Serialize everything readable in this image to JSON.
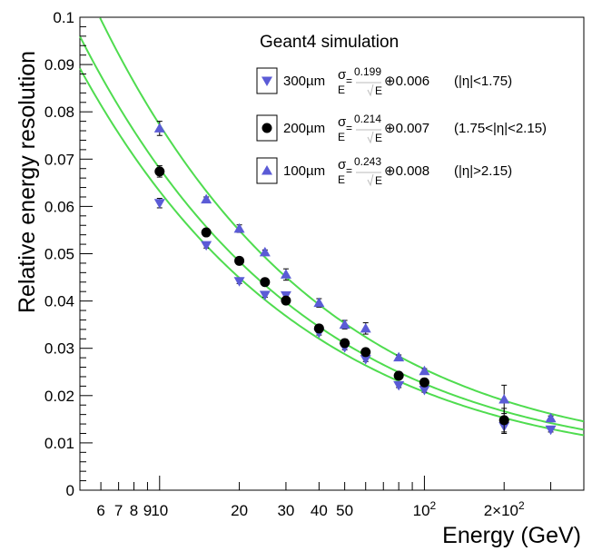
{
  "chart_data": {
    "type": "scatter",
    "title": "",
    "annotation": "Geant4 simulation",
    "xlabel": "Energy (GeV)",
    "ylabel": "Relative energy resolution",
    "xscale": "log",
    "xlim": [
      5,
      400
    ],
    "ylim": [
      0,
      0.1
    ],
    "grid": false,
    "legend_position": "top-right",
    "x_tick_labels": [
      {
        "value": 6,
        "label": "6"
      },
      {
        "value": 7,
        "label": "7"
      },
      {
        "value": 8,
        "label": "8"
      },
      {
        "value": 9,
        "label": "9"
      },
      {
        "value": 10,
        "label": "10"
      },
      {
        "value": 20,
        "label": "20"
      },
      {
        "value": 30,
        "label": "30"
      },
      {
        "value": 40,
        "label": "40"
      },
      {
        "value": 50,
        "label": "50"
      },
      {
        "value": 100,
        "label": "10",
        "exponent": "2"
      },
      {
        "value": 200,
        "label": "2×10",
        "exponent": "2"
      }
    ],
    "y_tick_labels": [
      {
        "value": 0,
        "label": "0"
      },
      {
        "value": 0.01,
        "label": "0.01"
      },
      {
        "value": 0.02,
        "label": "0.02"
      },
      {
        "value": 0.03,
        "label": "0.03"
      },
      {
        "value": 0.04,
        "label": "0.04"
      },
      {
        "value": 0.05,
        "label": "0.05"
      },
      {
        "value": 0.06,
        "label": "0.06"
      },
      {
        "value": 0.07,
        "label": "0.07"
      },
      {
        "value": 0.08,
        "label": "0.08"
      },
      {
        "value": 0.09,
        "label": "0.09"
      },
      {
        "value": 0.1,
        "label": "0.1"
      }
    ],
    "series": [
      {
        "name": "300µm",
        "marker": "triangle-down",
        "color": "#5b5bd6",
        "stochastic": 0.199,
        "constant": 0.006,
        "fit_label": {
          "sigma": "σ",
          "E": "E",
          "stochastic": "0.199",
          "sqrtE": "E",
          "plus": "⊕0.006",
          "region": "(|η|<1.75)"
        },
        "points": [
          {
            "x": 10,
            "y": 0.0607,
            "err": 0.001
          },
          {
            "x": 15,
            "y": 0.0518,
            "err": 0.0006
          },
          {
            "x": 20,
            "y": 0.0442,
            "err": 0.0005
          },
          {
            "x": 25,
            "y": 0.0413,
            "err": 0.0005
          },
          {
            "x": 30,
            "y": 0.0412,
            "err": 0.0006
          },
          {
            "x": 40,
            "y": 0.0333,
            "err": 0.0005
          },
          {
            "x": 50,
            "y": 0.0302,
            "err": 0.0005
          },
          {
            "x": 60,
            "y": 0.0277,
            "err": 0.0005
          },
          {
            "x": 80,
            "y": 0.0222,
            "err": 0.0005
          },
          {
            "x": 100,
            "y": 0.0212,
            "err": 0.0005
          },
          {
            "x": 200,
            "y": 0.0135,
            "err": 0.0015
          },
          {
            "x": 300,
            "y": 0.0128,
            "err": 0.0005
          }
        ]
      },
      {
        "name": "200µm",
        "marker": "circle",
        "color": "#000000",
        "stochastic": 0.214,
        "constant": 0.007,
        "fit_label": {
          "sigma": "σ",
          "E": "E",
          "stochastic": "0.214",
          "sqrtE": "E",
          "plus": "⊕0.007",
          "region": "(1.75<|η|<2.15)"
        },
        "points": [
          {
            "x": 10,
            "y": 0.0674,
            "err": 0.0012
          },
          {
            "x": 15,
            "y": 0.0545,
            "err": 0.0006
          },
          {
            "x": 20,
            "y": 0.0485,
            "err": 0.0007
          },
          {
            "x": 25,
            "y": 0.044,
            "err": 0.0007
          },
          {
            "x": 30,
            "y": 0.0401,
            "err": 0.0008
          },
          {
            "x": 40,
            "y": 0.0342,
            "err": 0.0006
          },
          {
            "x": 50,
            "y": 0.0311,
            "err": 0.0006
          },
          {
            "x": 60,
            "y": 0.0292,
            "err": 0.0006
          },
          {
            "x": 80,
            "y": 0.0242,
            "err": 0.0006
          },
          {
            "x": 100,
            "y": 0.0228,
            "err": 0.0006
          },
          {
            "x": 200,
            "y": 0.0148,
            "err": 0.0025
          }
        ]
      },
      {
        "name": "100µm",
        "marker": "triangle-up",
        "color": "#5b5bd6",
        "stochastic": 0.243,
        "constant": 0.008,
        "fit_label": {
          "sigma": "σ",
          "E": "E",
          "stochastic": "0.243",
          "sqrtE": "E",
          "plus": "⊕0.008",
          "region": "(|η|>2.15)"
        },
        "points": [
          {
            "x": 10,
            "y": 0.0765,
            "err": 0.0015
          },
          {
            "x": 15,
            "y": 0.0615,
            "err": 0.0005
          },
          {
            "x": 20,
            "y": 0.0553,
            "err": 0.0008
          },
          {
            "x": 25,
            "y": 0.0503,
            "err": 0.0005
          },
          {
            "x": 30,
            "y": 0.0456,
            "err": 0.0012
          },
          {
            "x": 40,
            "y": 0.0396,
            "err": 0.0009
          },
          {
            "x": 50,
            "y": 0.035,
            "err": 0.0009
          },
          {
            "x": 60,
            "y": 0.0342,
            "err": 0.0012
          },
          {
            "x": 80,
            "y": 0.0281,
            "err": 0.0005
          },
          {
            "x": 100,
            "y": 0.0252,
            "err": 0.0005
          },
          {
            "x": 200,
            "y": 0.0192,
            "err": 0.003
          },
          {
            "x": 300,
            "y": 0.0152,
            "err": 0.0005
          }
        ]
      }
    ],
    "fit_line_color": "#4fdc4f"
  }
}
